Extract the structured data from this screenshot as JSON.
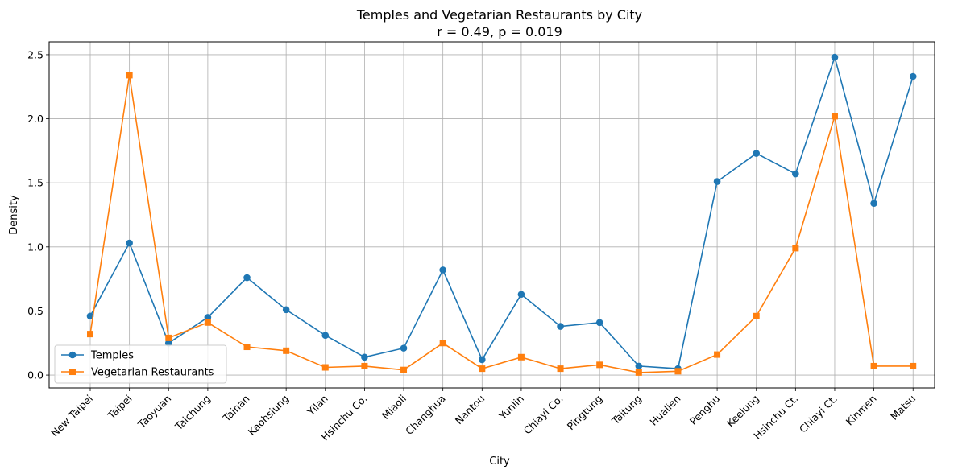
{
  "chart_data": {
    "type": "line",
    "title": "Temples and Vegetarian Restaurants by City",
    "subtitle": "r = 0.49, p = 0.019",
    "xlabel": "City",
    "ylabel": "Density",
    "categories": [
      "New Taipei",
      "Taipei",
      "Taoyuan",
      "Taichung",
      "Tainan",
      "Kaohsiung",
      "Yilan",
      "Hsinchu Co.",
      "Miaoli",
      "Changhua",
      "Nantou",
      "Yunlin",
      "Chiayi Co.",
      "Pingtung",
      "Taitung",
      "Hualien",
      "Penghu",
      "Keelung",
      "Hsinchu Ct.",
      "Chiayi Ct.",
      "Kinmen",
      "Matsu"
    ],
    "ylim": [
      -0.1,
      2.6
    ],
    "yticks": [
      "0.0",
      "0.5",
      "1.0",
      "1.5",
      "2.0",
      "2.5"
    ],
    "grid": true,
    "legend_position": "lower-left",
    "series": [
      {
        "name": "Temples",
        "color": "#1f77b4",
        "marker": "circle",
        "values": [
          0.46,
          1.03,
          0.25,
          0.45,
          0.76,
          0.51,
          0.31,
          0.14,
          0.21,
          0.82,
          0.12,
          0.63,
          0.38,
          0.41,
          0.07,
          0.05,
          1.51,
          1.73,
          1.57,
          2.48,
          1.34,
          2.33
        ]
      },
      {
        "name": "Vegetarian Restaurants",
        "color": "#ff7f0e",
        "marker": "square",
        "values": [
          0.32,
          2.34,
          0.29,
          0.41,
          0.22,
          0.19,
          0.06,
          0.07,
          0.04,
          0.25,
          0.05,
          0.14,
          0.05,
          0.08,
          0.02,
          0.03,
          0.16,
          0.46,
          0.99,
          2.02,
          0.07,
          0.07
        ]
      }
    ]
  }
}
